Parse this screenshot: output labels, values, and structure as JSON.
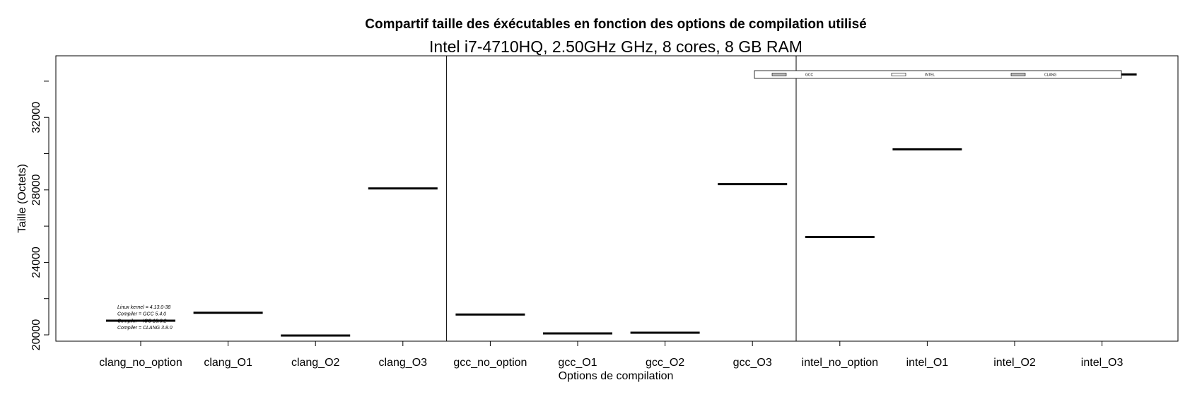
{
  "chart_data": {
    "type": "boxplot",
    "title": "Compartif taille des éxécutables en fonction des options de compilation utilisé",
    "subtitle": "Intel i7-4710HQ, 2.50GHz GHz, 8 cores, 8 GB RAM",
    "xlabel": "Options de compilation",
    "ylabel": "Taille (Octets)",
    "ylim": [
      19650,
      35400
    ],
    "yticks": [
      20000,
      24000,
      28000,
      32000
    ],
    "categories": [
      "clang_no_option",
      "clang_O1",
      "clang_O2",
      "clang_O3",
      "gcc_no_option",
      "gcc_O1",
      "gcc_O2",
      "gcc_O3",
      "intel_no_option",
      "intel_O1",
      "intel_O2",
      "intel_O3"
    ],
    "values": [
      20780,
      21220,
      19960,
      28080,
      21120,
      20080,
      20120,
      28320,
      25400,
      30240,
      34370,
      34370
    ],
    "groups": [
      {
        "name": "clang",
        "start": 0,
        "end": 3
      },
      {
        "name": "gcc",
        "start": 4,
        "end": 7
      },
      {
        "name": "intel",
        "start": 8,
        "end": 11
      }
    ],
    "legend": {
      "position": "top-right",
      "entries": [
        "GCC",
        "INTEL",
        "CLANG"
      ]
    },
    "notes": [
      "Linux kernel = 4.13.0-38",
      "Compiler = GCC 5.4.0",
      "Compiler = ICC 18.0.2",
      "Compiler = CLANG 3.8.0"
    ]
  }
}
